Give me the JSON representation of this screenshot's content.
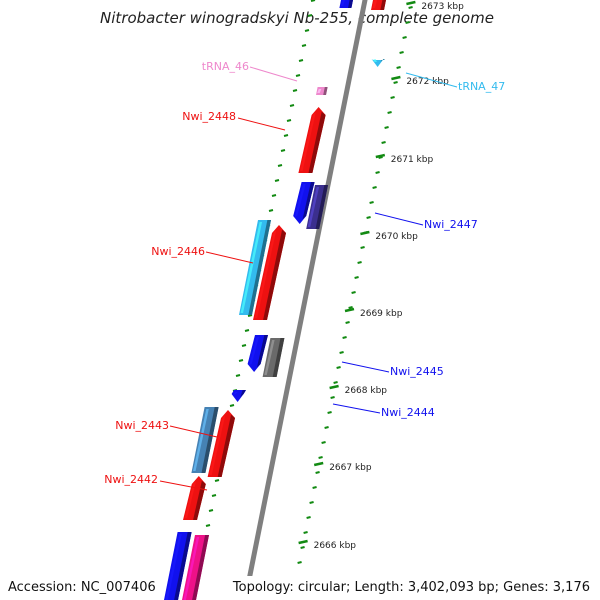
{
  "title": "Nitrobacter winogradskyi Nb-255, complete genome",
  "footer": {
    "accession": "Accession: NC_007406",
    "topology": "Topology: circular; Length: 3,402,093 bp; Genes: 3,176"
  },
  "colors": {
    "backbone": "#7f7f7f",
    "tick": "#128a12",
    "red": "#ee1111",
    "blue": "#1111ee",
    "cyan": "#33bbee",
    "pink": "#ee88cc",
    "navy": "#3b2f8e",
    "gray": "#6a6a6a",
    "steel": "#4682b4",
    "magenta": "#ee1188"
  },
  "ticks": [
    {
      "label": "2673 kbp"
    },
    {
      "label": "2672 kbp"
    },
    {
      "label": "2671 kbp"
    },
    {
      "label": "2670 kbp"
    },
    {
      "label": "2669 kbp"
    },
    {
      "label": "2668 kbp"
    },
    {
      "label": "2667 kbp"
    },
    {
      "label": "2666 kbp"
    }
  ],
  "genes": [
    {
      "name": "tRNA_46",
      "color": "pink"
    },
    {
      "name": "tRNA_47",
      "color": "cyan"
    },
    {
      "name": "Nwi_2448",
      "color": "red"
    },
    {
      "name": "Nwi_2447",
      "color": "blue"
    },
    {
      "name": "Nwi_2446",
      "color": "red"
    },
    {
      "name": "Nwi_2445",
      "color": "blue"
    },
    {
      "name": "Nwi_2444",
      "color": "blue"
    },
    {
      "name": "Nwi_2443",
      "color": "red"
    },
    {
      "name": "Nwi_2442",
      "color": "red"
    }
  ]
}
